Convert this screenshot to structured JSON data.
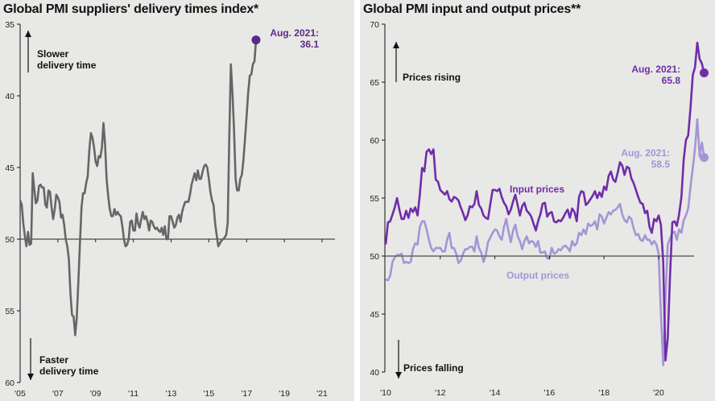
{
  "chart_data": [
    {
      "type": "line",
      "title": "Global PMI suppliers' delivery times index*",
      "xlabel": "",
      "ylabel": "",
      "y_inverted": true,
      "ylim": [
        35,
        60
      ],
      "yticks": [
        35,
        40,
        45,
        50,
        55,
        60
      ],
      "xticks": [
        "'05",
        "'07",
        "'09",
        "'11",
        "'13",
        "'15",
        "'17",
        "'19",
        "'21"
      ],
      "reference_line": 50,
      "annotations": {
        "top": [
          "Slower",
          "delivery time"
        ],
        "bottom": [
          "Faster",
          "delivery time"
        ],
        "last": [
          "Aug. 2021:",
          "36.1"
        ]
      },
      "colors": {
        "line": "#666666",
        "marker": "#5b2a86",
        "annotation": "#5b2a86"
      },
      "start": "2005-01",
      "frequency": "monthly",
      "series": [
        {
          "name": "Suppliers' delivery times",
          "values": [
            47.3,
            47.6,
            48.9,
            49.8,
            50.5,
            49.5,
            50.4,
            50.3,
            45.4,
            46.5,
            47.5,
            47.3,
            46.3,
            46.2,
            46.4,
            46.4,
            47.6,
            47.8,
            46.6,
            46.7,
            47.8,
            48.6,
            47.9,
            46.9,
            47.1,
            47.4,
            48.5,
            48.3,
            49.0,
            50.0,
            50.5,
            51.4,
            53.8,
            55.3,
            55.4,
            56.7,
            55.5,
            53.0,
            50.4,
            47.8,
            46.8,
            46.8,
            46.1,
            45.6,
            43.8,
            42.6,
            42.9,
            43.6,
            44.6,
            44.9,
            44.2,
            44.3,
            43.6,
            41.9,
            43.4,
            45.8,
            47.0,
            47.9,
            48.4,
            48.4,
            47.9,
            48.3,
            48.1,
            48.3,
            48.4,
            49.1,
            50.0,
            50.5,
            50.4,
            50.0,
            48.8,
            48.7,
            49.4,
            49.4,
            48.2,
            48.9,
            49.2,
            48.6,
            48.1,
            48.6,
            48.4,
            48.8,
            49.4,
            48.7,
            48.8,
            49.1,
            49.3,
            49.2,
            49.4,
            49.5,
            49.2,
            49.7,
            49.1,
            50.0,
            50.0,
            48.4,
            48.4,
            48.8,
            49.2,
            49.0,
            48.5,
            48.3,
            48.8,
            48.1,
            47.7,
            47.4,
            47.4,
            47.4,
            46.9,
            46.2,
            45.8,
            45.4,
            45.9,
            45.2,
            45.8,
            45.8,
            45.3,
            44.9,
            44.8,
            45.0,
            45.8,
            46.7,
            47.3,
            47.6,
            48.9,
            49.7,
            50.5,
            50.3,
            50.1,
            50.0,
            49.9,
            49.7,
            48.9,
            42.8,
            37.8,
            39.8,
            42.3,
            45.8,
            46.6,
            46.6,
            45.8,
            45.5,
            44.5,
            43.0,
            41.4,
            39.8,
            38.6,
            38.5,
            37.8,
            37.6,
            36.1
          ]
        }
      ]
    },
    {
      "type": "line",
      "title": "Global PMI input and output prices**",
      "xlabel": "",
      "ylabel": "",
      "ylim": [
        40,
        70
      ],
      "yticks": [
        40,
        45,
        50,
        55,
        60,
        65,
        70
      ],
      "xticks": [
        "'10",
        "'12",
        "'14",
        "'16",
        "'18",
        "'20"
      ],
      "reference_line": 50,
      "annotations": {
        "top": [
          "Prices rising"
        ],
        "bottom": [
          "Prices falling"
        ],
        "input_last": [
          "Aug. 2021:",
          "65.8"
        ],
        "output_last": [
          "Aug. 2021:",
          "58.5"
        ]
      },
      "colors": {
        "input": "#6f2da8",
        "output": "#a495d6",
        "axis_ref": "#666666"
      },
      "start": "2010-01",
      "frequency": "monthly",
      "series": [
        {
          "name": "Input prices",
          "label": "Input prices",
          "values": [
            51.0,
            52.9,
            53.0,
            53.6,
            54.2,
            55.0,
            54.0,
            53.2,
            53.2,
            53.9,
            53.3,
            54.1,
            53.8,
            54.2,
            53.5,
            55.3,
            57.6,
            57.3,
            59.0,
            59.2,
            58.8,
            59.2,
            56.6,
            56.4,
            55.7,
            55.5,
            55.3,
            55.6,
            54.9,
            54.7,
            55.1,
            55.0,
            54.8,
            54.2,
            53.7,
            53.1,
            53.5,
            54.3,
            54.2,
            54.5,
            55.6,
            54.4,
            54.1,
            53.5,
            53.3,
            53.2,
            54.5,
            55.7,
            55.7,
            55.6,
            55.8,
            55.1,
            54.6,
            54.3,
            53.6,
            54.0,
            54.7,
            55.3,
            54.4,
            53.5,
            54.3,
            54.6,
            53.9,
            53.7,
            53.4,
            52.8,
            52.2,
            53.0,
            53.6,
            54.5,
            54.6,
            53.4,
            53.7,
            53.8,
            53.0,
            52.9,
            53.1,
            53.0,
            53.3,
            53.7,
            54.0,
            53.3,
            54.1,
            53.8,
            53.0,
            55.1,
            55.6,
            55.5,
            54.4,
            54.6,
            54.9,
            55.2,
            55.6,
            55.0,
            55.5,
            55.1,
            56.0,
            55.7,
            56.9,
            57.3,
            56.6,
            56.4,
            57.2,
            58.1,
            57.8,
            57.0,
            57.7,
            57.6,
            56.7,
            56.3,
            55.7,
            55.1,
            54.6,
            54.5,
            53.7,
            53.9,
            52.5,
            52.0,
            53.2,
            53.0,
            53.5,
            52.7,
            49.5,
            41.0,
            42.9,
            48.2,
            52.9,
            53.0,
            52.6,
            53.6,
            55.1,
            58.3,
            60.0,
            60.4,
            62.8,
            65.6,
            66.3,
            68.4,
            67.0,
            66.6,
            65.8
          ]
        },
        {
          "name": "Output prices",
          "label": "Output prices",
          "values": [
            48.0,
            47.9,
            48.3,
            49.5,
            49.9,
            50.1,
            50.1,
            50.2,
            49.4,
            49.5,
            49.4,
            49.5,
            50.6,
            51.1,
            51.0,
            52.5,
            53.0,
            53.0,
            52.3,
            51.4,
            50.7,
            50.4,
            50.7,
            50.7,
            50.7,
            50.4,
            50.4,
            51.4,
            52.0,
            50.7,
            50.7,
            50.2,
            49.4,
            49.6,
            50.2,
            50.6,
            50.6,
            50.8,
            50.8,
            50.4,
            51.7,
            50.7,
            50.3,
            49.5,
            50.1,
            51.2,
            51.6,
            52.0,
            52.3,
            52.2,
            51.7,
            51.4,
            52.5,
            53.2,
            52.1,
            51.2,
            52.2,
            52.7,
            51.7,
            51.3,
            50.6,
            51.3,
            51.7,
            51.1,
            51.3,
            51.2,
            50.8,
            51.3,
            50.3,
            50.3,
            50.4,
            49.8,
            49.8,
            50.7,
            50.2,
            50.3,
            50.6,
            50.5,
            50.8,
            50.9,
            50.7,
            50.4,
            51.3,
            50.9,
            51.1,
            52.0,
            51.8,
            52.3,
            51.9,
            52.8,
            52.6,
            52.7,
            53.0,
            52.3,
            53.6,
            53.4,
            52.8,
            53.3,
            53.8,
            53.6,
            53.9,
            54.0,
            54.2,
            54.5,
            53.6,
            53.1,
            52.9,
            53.4,
            53.2,
            52.4,
            51.8,
            51.9,
            51.4,
            51.3,
            51.8,
            51.4,
            51.4,
            51.0,
            51.3,
            51.0,
            50.2,
            45.1,
            40.6,
            46.4,
            51.0,
            51.5,
            52.0,
            52.1,
            51.4,
            52.3,
            52.0,
            53.1,
            53.5,
            54.1,
            56.0,
            57.6,
            59.3,
            61.8,
            58.6,
            59.8,
            58.5
          ]
        }
      ]
    }
  ]
}
